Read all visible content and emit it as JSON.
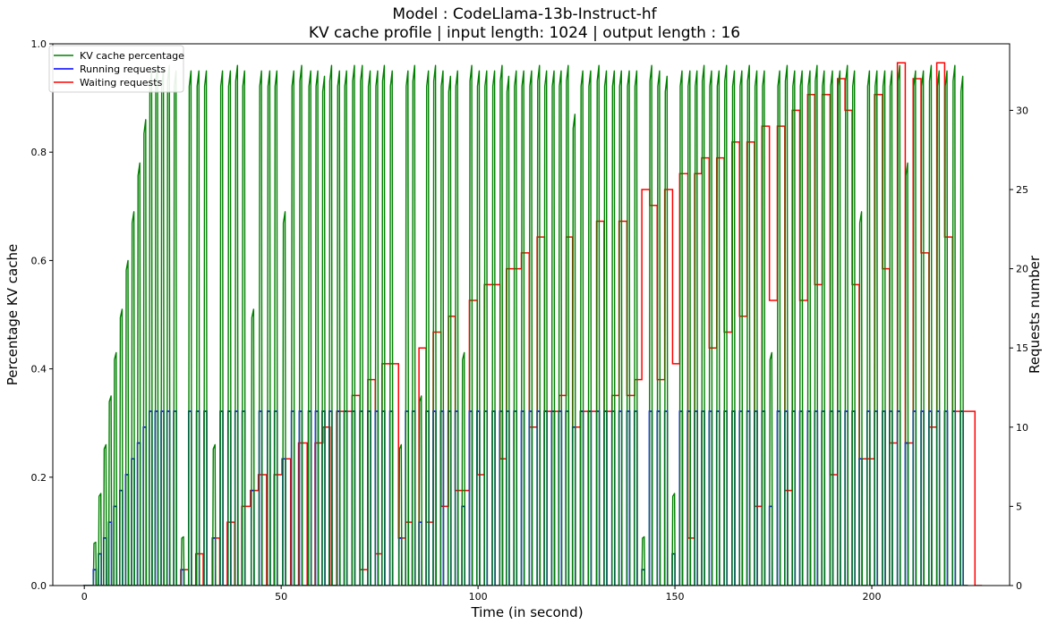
{
  "chart_data": {
    "type": "line",
    "title_line1": "Model : CodeLlama-13b-Instruct-hf",
    "title_line2": "KV cache profile | input length: 1024 | output length : 16",
    "xlabel": "Time (in second)",
    "ylabel_left": "Percentage KV cache",
    "ylabel_right": "Requests number",
    "xlim": [
      -8,
      235
    ],
    "ylim_left": [
      0,
      1.0
    ],
    "ylim_right": [
      0,
      34.2
    ],
    "xticks": [
      "0",
      "50",
      "100",
      "150",
      "200"
    ],
    "xtick_values": [
      0,
      50,
      100,
      150,
      200
    ],
    "yticks_left": [
      "0.0",
      "0.2",
      "0.4",
      "0.6",
      "0.8",
      "1.0"
    ],
    "ytick_values_left": [
      0,
      0.2,
      0.4,
      0.6,
      0.8,
      1.0
    ],
    "yticks_right": [
      "0",
      "5",
      "10",
      "15",
      "20",
      "25",
      "30"
    ],
    "ytick_values_right": [
      0,
      5,
      10,
      15,
      20,
      25,
      30
    ],
    "legend_position": "upper-left",
    "grid": false,
    "colors": {
      "kv": "#008000",
      "running": "#0000ff",
      "waiting": "#ff0000"
    },
    "series": [
      {
        "name": "KV cache percentage",
        "axis": "left",
        "pulse_starts": [
          2.3,
          3.6,
          4.9,
          6.2,
          7.5,
          9.0,
          10.5,
          12.0,
          13.5,
          15.0,
          16.5,
          18.0,
          19.5,
          21.0,
          22.7,
          24.6,
          26.5,
          28.5,
          30.4,
          32.6,
          34.5,
          36.5,
          38.3,
          40.1,
          42.4,
          44.4,
          46.5,
          48.3,
          50.4,
          52.6,
          54.6,
          56.9,
          58.7,
          60.4,
          62.2,
          64.2,
          66.0,
          68.0,
          70.0,
          72.0,
          73.9,
          75.6,
          77.6,
          79.9,
          81.6,
          83.3,
          85.0,
          86.8,
          88.6,
          90.5,
          92.4,
          94.2,
          95.9,
          97.8,
          99.7,
          101.6,
          103.6,
          105.5,
          107.2,
          109.1,
          111.0,
          113.0,
          115.0,
          116.8,
          118.7,
          120.5,
          122.3,
          124.0,
          126.0,
          128.0,
          130.1,
          132.0,
          134.0,
          135.8,
          137.8,
          139.7,
          141.6,
          143.5,
          145.5,
          147.4,
          149.3,
          151.2,
          153.2,
          155.0,
          156.8,
          158.7,
          160.6,
          162.5,
          164.5,
          166.4,
          168.3,
          170.2,
          172.1,
          174.0,
          176.0,
          177.9,
          179.8,
          181.7,
          183.7,
          185.5,
          187.3,
          189.4,
          191.3,
          193.2,
          195.0,
          196.8,
          198.8,
          200.7,
          202.7,
          204.5,
          206.5,
          208.5,
          210.5,
          212.5,
          214.5,
          216.5,
          218.5,
          220.5,
          222.5,
          224.4,
          226.2
        ],
        "pulse_heights": [
          0.08,
          0.17,
          0.26,
          0.35,
          0.43,
          0.51,
          0.6,
          0.69,
          0.78,
          0.86,
          0.95,
          0.96,
          0.95,
          0.96,
          0.95,
          0.09,
          0.95,
          0.95,
          0.95,
          0.26,
          0.95,
          0.95,
          0.96,
          0.95,
          0.51,
          0.95,
          0.95,
          0.95,
          0.69,
          0.95,
          0.96,
          0.95,
          0.95,
          0.94,
          0.96,
          0.95,
          0.95,
          0.96,
          0.96,
          0.95,
          0.95,
          0.96,
          0.95,
          0.26,
          0.95,
          0.96,
          0.35,
          0.95,
          0.96,
          0.95,
          0.94,
          0.95,
          0.43,
          0.96,
          0.95,
          0.95,
          0.95,
          0.96,
          0.94,
          0.95,
          0.95,
          0.95,
          0.96,
          0.95,
          0.95,
          0.95,
          0.96,
          0.87,
          0.95,
          0.95,
          0.96,
          0.95,
          0.95,
          0.95,
          0.95,
          0.95,
          0.09,
          0.96,
          0.95,
          0.94,
          0.17,
          0.95,
          0.95,
          0.95,
          0.96,
          0.95,
          0.95,
          0.96,
          0.95,
          0.95,
          0.96,
          0.95,
          0.95,
          0.43,
          0.95,
          0.96,
          0.95,
          0.95,
          0.95,
          0.96,
          0.95,
          0.95,
          0.95,
          0.96,
          0.95,
          0.69,
          0.95,
          0.95,
          0.95,
          0.95,
          0.96,
          0.78,
          0.95,
          0.95,
          0.96,
          0.95,
          0.95,
          0.96,
          0.94
        ]
      },
      {
        "name": "Running requests",
        "axis": "right",
        "pulse_starts": [
          2.3,
          3.6,
          4.9,
          6.2,
          7.5,
          9.0,
          10.5,
          12.0,
          13.5,
          15.0,
          16.5,
          18.0,
          19.5,
          21.0,
          22.7,
          24.6,
          26.5,
          28.5,
          30.4,
          32.6,
          34.5,
          36.5,
          38.3,
          40.1,
          42.4,
          44.4,
          46.5,
          48.3,
          50.4,
          52.6,
          54.6,
          56.9,
          58.7,
          60.4,
          62.2,
          64.2,
          66.0,
          68.0,
          70.0,
          72.0,
          73.9,
          75.6,
          77.6,
          79.9,
          81.6,
          83.3,
          85.0,
          86.8,
          88.6,
          90.5,
          92.4,
          94.2,
          95.9,
          97.8,
          99.7,
          101.6,
          103.6,
          105.5,
          107.2,
          109.1,
          111.0,
          113.0,
          115.0,
          116.8,
          118.7,
          120.5,
          122.3,
          124.0,
          126.0,
          128.0,
          130.1,
          132.0,
          134.0,
          135.8,
          137.8,
          139.7,
          141.6,
          143.5,
          145.5,
          147.4,
          149.3,
          151.2,
          153.2,
          155.0,
          156.8,
          158.7,
          160.6,
          162.5,
          164.5,
          166.4,
          168.3,
          170.2,
          172.1,
          174.0,
          176.0,
          177.9,
          179.8,
          181.7,
          183.7,
          185.5,
          187.3,
          189.4,
          191.3,
          193.2,
          195.0,
          196.8,
          198.8,
          200.7,
          202.7,
          204.5,
          206.5,
          208.5,
          210.5,
          212.5,
          214.5,
          216.5,
          218.5,
          220.5,
          222.5,
          224.4,
          226.2
        ],
        "pulse_heights": [
          1,
          2,
          3,
          4,
          5,
          6,
          7,
          8,
          9,
          10,
          11,
          11,
          11,
          11,
          11,
          1,
          11,
          11,
          11,
          3,
          11,
          11,
          11,
          11,
          6,
          11,
          11,
          11,
          8,
          11,
          11,
          11,
          11,
          11,
          11,
          11,
          11,
          11,
          11,
          11,
          11,
          11,
          11,
          3,
          11,
          11,
          4,
          11,
          11,
          11,
          11,
          11,
          5,
          11,
          11,
          11,
          11,
          11,
          11,
          11,
          11,
          11,
          11,
          11,
          11,
          11,
          11,
          10,
          11,
          11,
          11,
          11,
          11,
          11,
          11,
          11,
          1,
          11,
          11,
          11,
          2,
          11,
          11,
          11,
          11,
          11,
          11,
          11,
          11,
          11,
          11,
          11,
          11,
          5,
          11,
          11,
          11,
          11,
          11,
          11,
          11,
          11,
          11,
          11,
          11,
          8,
          11,
          11,
          11,
          11,
          11,
          9,
          11,
          11,
          11,
          11,
          11,
          11,
          11
        ]
      },
      {
        "name": "Waiting requests",
        "axis": "right",
        "intervals": [
          [
            24.5,
            26.5,
            1
          ],
          [
            28.3,
            30.2,
            2
          ],
          [
            32.5,
            34.4,
            3
          ],
          [
            36.3,
            38.2,
            4
          ],
          [
            40.0,
            42.2,
            5
          ],
          [
            42.2,
            44.2,
            6
          ],
          [
            44.2,
            46.3,
            7
          ],
          [
            48.2,
            50.2,
            7
          ],
          [
            50.2,
            52.4,
            8
          ],
          [
            54.4,
            56.6,
            9
          ],
          [
            58.6,
            60.6,
            9
          ],
          [
            60.6,
            62.4,
            10
          ],
          [
            64.1,
            66.0,
            11
          ],
          [
            66.0,
            68.0,
            11
          ],
          [
            68.0,
            70.0,
            12
          ],
          [
            70.0,
            72.0,
            1
          ],
          [
            72.0,
            73.9,
            13
          ],
          [
            73.9,
            75.6,
            2
          ],
          [
            75.6,
            77.6,
            14
          ],
          [
            77.6,
            79.8,
            14
          ],
          [
            79.8,
            81.6,
            3
          ],
          [
            81.6,
            83.3,
            4
          ],
          [
            85.0,
            86.8,
            15
          ],
          [
            86.8,
            88.6,
            4
          ],
          [
            88.6,
            90.6,
            16
          ],
          [
            90.6,
            92.5,
            5
          ],
          [
            92.5,
            94.2,
            17
          ],
          [
            94.2,
            96.0,
            6
          ],
          [
            96.0,
            97.8,
            6
          ],
          [
            97.8,
            99.8,
            18
          ],
          [
            99.8,
            101.6,
            7
          ],
          [
            101.6,
            103.6,
            19
          ],
          [
            103.6,
            105.6,
            19
          ],
          [
            105.6,
            107.2,
            8
          ],
          [
            107.2,
            109.2,
            20
          ],
          [
            109.2,
            111.0,
            20
          ],
          [
            111.0,
            113.0,
            21
          ],
          [
            113.0,
            115.0,
            10
          ],
          [
            115.0,
            116.9,
            22
          ],
          [
            116.9,
            118.7,
            11
          ],
          [
            118.7,
            120.6,
            11
          ],
          [
            120.6,
            122.4,
            12
          ],
          [
            122.4,
            124.0,
            22
          ],
          [
            124.0,
            126.0,
            10
          ],
          [
            126.0,
            128.0,
            11
          ],
          [
            128.0,
            130.1,
            11
          ],
          [
            130.1,
            132.0,
            23
          ],
          [
            132.0,
            134.0,
            11
          ],
          [
            134.0,
            135.8,
            12
          ],
          [
            135.8,
            137.8,
            23
          ],
          [
            137.8,
            139.8,
            12
          ],
          [
            139.8,
            141.6,
            13
          ],
          [
            141.6,
            143.6,
            25
          ],
          [
            143.6,
            145.5,
            24
          ],
          [
            145.5,
            147.4,
            13
          ],
          [
            147.4,
            149.4,
            25
          ],
          [
            149.4,
            151.2,
            14
          ],
          [
            151.2,
            153.3,
            26
          ],
          [
            153.3,
            155.0,
            3
          ],
          [
            155.0,
            156.8,
            26
          ],
          [
            156.8,
            158.7,
            27
          ],
          [
            158.7,
            160.6,
            15
          ],
          [
            160.6,
            162.5,
            27
          ],
          [
            162.5,
            164.5,
            16
          ],
          [
            164.5,
            166.4,
            28
          ],
          [
            166.4,
            168.3,
            17
          ],
          [
            168.3,
            170.2,
            28
          ],
          [
            170.2,
            172.1,
            5
          ],
          [
            172.1,
            174.0,
            29
          ],
          [
            174.0,
            176.0,
            18
          ],
          [
            176.0,
            177.9,
            29
          ],
          [
            177.9,
            179.8,
            6
          ],
          [
            179.8,
            181.7,
            30
          ],
          [
            181.7,
            183.7,
            18
          ],
          [
            183.7,
            185.5,
            31
          ],
          [
            185.5,
            187.4,
            19
          ],
          [
            187.4,
            189.4,
            31
          ],
          [
            189.4,
            191.3,
            7
          ],
          [
            191.3,
            193.2,
            32
          ],
          [
            193.2,
            195.0,
            30
          ],
          [
            195.0,
            196.8,
            19
          ],
          [
            196.8,
            198.8,
            8
          ],
          [
            198.8,
            200.7,
            8
          ],
          [
            200.7,
            202.7,
            31
          ],
          [
            202.7,
            204.5,
            20
          ],
          [
            204.5,
            206.5,
            9
          ],
          [
            206.5,
            208.5,
            33
          ],
          [
            208.5,
            210.5,
            9
          ],
          [
            210.5,
            212.5,
            32
          ],
          [
            212.5,
            214.5,
            21
          ],
          [
            214.5,
            216.5,
            10
          ],
          [
            216.5,
            218.5,
            33
          ],
          [
            218.5,
            220.5,
            22
          ],
          [
            220.5,
            222.5,
            11
          ],
          [
            222.5,
            224.4,
            11
          ],
          [
            224.4,
            226.2,
            11
          ]
        ]
      }
    ]
  }
}
